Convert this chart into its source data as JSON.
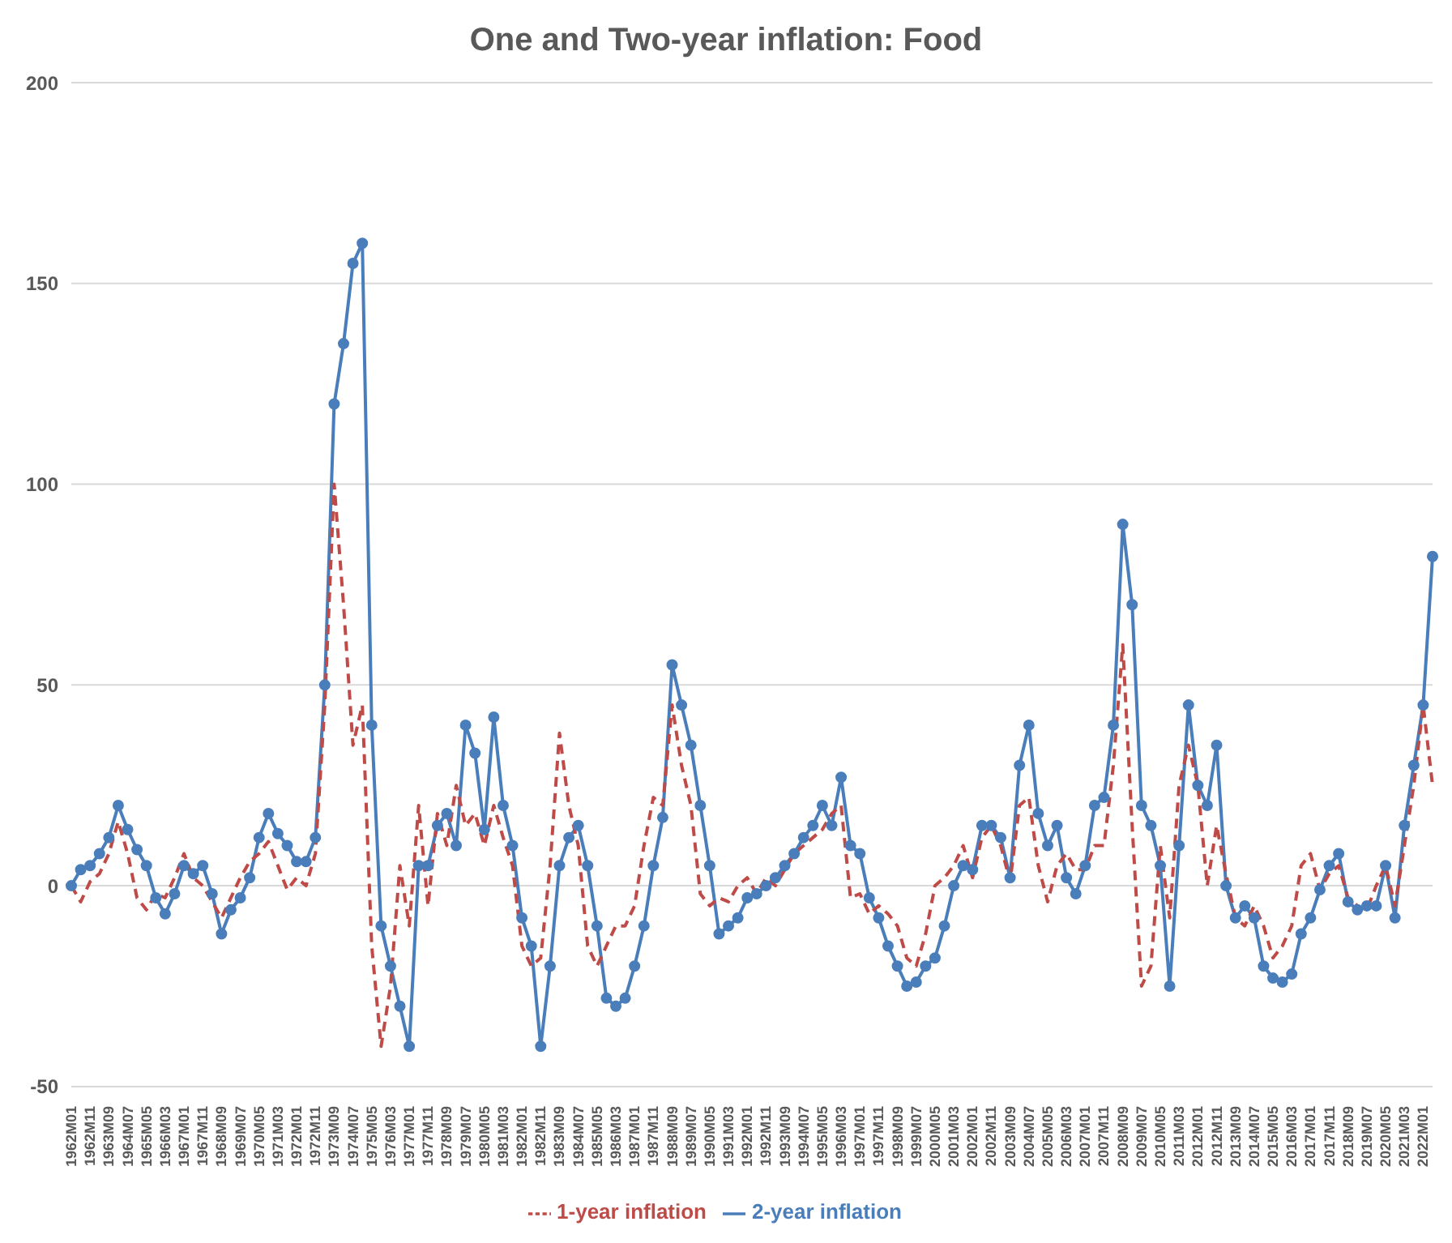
{
  "chart_data": {
    "type": "line",
    "title": "One and Two-year inflation: Food",
    "categories": [
      "1962M01",
      null,
      "1962M11",
      null,
      "1963M09",
      null,
      "1964M07",
      null,
      "1965M05",
      null,
      "1966M03",
      null,
      "1967M01",
      null,
      "1967M11",
      null,
      "1968M09",
      null,
      "1969M07",
      null,
      "1970M05",
      null,
      "1971M03",
      null,
      "1972M01",
      null,
      "1972M11",
      null,
      "1973M09",
      null,
      "1974M07",
      null,
      "1975M05",
      null,
      "1976M03",
      null,
      "1977M01",
      null,
      "1977M11",
      null,
      "1978M09",
      null,
      "1979M07",
      null,
      "1980M05",
      null,
      "1981M03",
      null,
      "1982M01",
      null,
      "1982M11",
      null,
      "1983M09",
      null,
      "1984M07",
      null,
      "1985M05",
      null,
      "1986M03",
      null,
      "1987M01",
      null,
      "1987M11",
      null,
      "1988M09",
      null,
      "1989M07",
      null,
      "1990M05",
      null,
      "1991M03",
      null,
      "1992M01",
      null,
      "1992M11",
      null,
      "1993M09",
      null,
      "1994M07",
      null,
      "1995M05",
      null,
      "1996M03",
      null,
      "1997M01",
      null,
      "1997M11",
      null,
      "1998M09",
      null,
      "1999M07",
      null,
      "2000M05",
      null,
      "2001M03",
      null,
      "2002M01",
      null,
      "2002M11",
      null,
      "2003M09",
      null,
      "2004M07",
      null,
      "2005M05",
      null,
      "2006M03",
      null,
      "2007M01",
      null,
      "2007M11",
      null,
      "2008M09",
      null,
      "2009M07",
      null,
      "2010M05",
      null,
      "2011M03",
      null,
      "2012M01",
      null,
      "2012M11",
      null,
      "2013M09",
      null,
      "2014M07",
      null,
      "2015M05",
      null,
      "2016M03",
      null,
      "2017M01",
      null,
      "2017M11",
      null,
      "2018M09",
      null,
      "2019M07",
      null,
      "2020M05",
      null,
      "2021M03",
      null,
      "2022M01",
      null
    ],
    "series": [
      {
        "name": "2-year inflation",
        "color": "#4a7ebb",
        "marker": "circle",
        "line_style": "solid",
        "values": [
          0,
          4,
          5,
          8,
          12,
          20,
          14,
          9,
          5,
          -3,
          -7,
          -2,
          5,
          3,
          5,
          -2,
          -12,
          -6,
          -3,
          2,
          12,
          18,
          13,
          10,
          6,
          6,
          12,
          50,
          120,
          135,
          155,
          160,
          40,
          -10,
          -20,
          -30,
          -40,
          5,
          5,
          15,
          18,
          10,
          40,
          33,
          14,
          42,
          20,
          10,
          -8,
          -15,
          -40,
          -20,
          5,
          12,
          15,
          5,
          -10,
          -28,
          -30,
          -28,
          -20,
          -10,
          5,
          17,
          55,
          45,
          35,
          20,
          5,
          -12,
          -10,
          -8,
          -3,
          -2,
          0,
          2,
          5,
          8,
          12,
          15,
          20,
          15,
          27,
          10,
          8,
          -3,
          -8,
          -15,
          -20,
          -25,
          -24,
          -20,
          -18,
          -10,
          0,
          5,
          4,
          15,
          15,
          12,
          2,
          30,
          40,
          18,
          10,
          15,
          2,
          -2,
          5,
          20,
          22,
          40,
          90,
          70,
          20,
          15,
          5,
          -25,
          10,
          45,
          25,
          20,
          35,
          0,
          -8,
          -5,
          -8,
          -20,
          -23,
          -24,
          -22,
          -12,
          -8,
          -1,
          5,
          8,
          -4,
          -6,
          -5,
          -5,
          5,
          -8,
          15,
          30,
          45,
          82
        ]
      },
      {
        "name": "1-year inflation",
        "color": "#be4b48",
        "marker": "none",
        "line_style": "dashed",
        "values": [
          0,
          -4,
          1,
          3,
          8,
          16,
          8,
          -3,
          -6,
          -2,
          -3,
          2,
          8,
          2,
          0,
          -4,
          -8,
          -3,
          2,
          6,
          8,
          11,
          5,
          -1,
          2,
          0,
          8,
          45,
          100,
          70,
          35,
          45,
          -15,
          -40,
          -25,
          5,
          -10,
          20,
          -5,
          18,
          10,
          25,
          15,
          18,
          10,
          20,
          12,
          5,
          -15,
          -20,
          -18,
          5,
          38,
          20,
          10,
          -15,
          -20,
          -15,
          -10,
          -10,
          -5,
          10,
          22,
          20,
          45,
          30,
          20,
          -2,
          -5,
          -3,
          -4,
          0,
          2,
          -2,
          2,
          0,
          4,
          8,
          10,
          12,
          14,
          18,
          20,
          -3,
          -2,
          -7,
          -5,
          -7,
          -10,
          -18,
          -20,
          -12,
          0,
          2,
          5,
          10,
          2,
          12,
          15,
          10,
          1,
          20,
          22,
          5,
          -4,
          5,
          8,
          4,
          4,
          10,
          10,
          30,
          60,
          15,
          -25,
          -20,
          10,
          -8,
          25,
          35,
          25,
          0,
          15,
          3,
          -8,
          -10,
          -5,
          -10,
          -18,
          -15,
          -10,
          5,
          8,
          -1,
          3,
          5,
          -3,
          -5,
          -6,
          0,
          5,
          -5,
          10,
          25,
          45,
          25
        ]
      }
    ],
    "ylim": [
      -50,
      200
    ],
    "yticks": [
      -50,
      0,
      50,
      100,
      150,
      200
    ],
    "grid": "y",
    "legend": "bottom"
  }
}
